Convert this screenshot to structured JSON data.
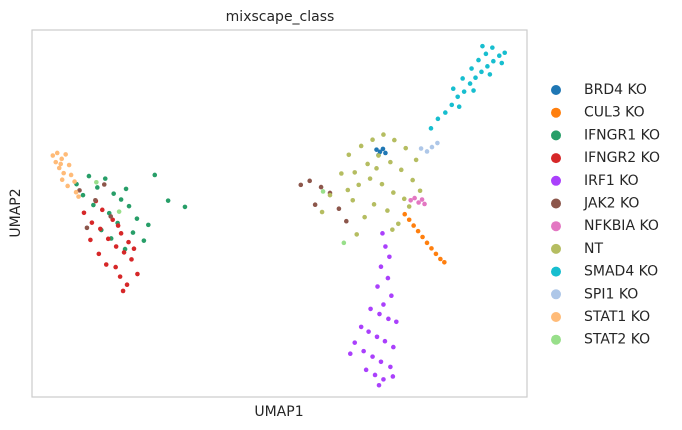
{
  "chart_data": {
    "type": "scatter",
    "title": "mixscape_class",
    "x_label": "UMAP1",
    "y_label": "UMAP2",
    "xlim": [
      0,
      100
    ],
    "ylim": [
      0,
      100
    ],
    "grid": false,
    "legend": "outside-right",
    "series": [
      {
        "name": "BRD4 KO",
        "color": "#1f77b4",
        "x": [
          69.6,
          70.3,
          70.9,
          70.0,
          71.4
        ],
        "y": [
          67.4,
          66.8,
          67.6,
          65.9,
          66.5
        ]
      },
      {
        "name": "CUL3 KO",
        "color": "#ff7f0e",
        "x": [
          75.3,
          76.2,
          77.1,
          78.0,
          78.9,
          79.8,
          80.7,
          81.6,
          82.5,
          83.3
        ],
        "y": [
          49.8,
          48.3,
          46.7,
          45.2,
          43.6,
          42.0,
          40.5,
          39.0,
          37.6,
          36.7
        ]
      },
      {
        "name": "IFNGR1 KO",
        "color": "#279e68",
        "x": [
          9.0,
          11.5,
          13.2,
          14.8,
          16.5,
          18.0,
          19.6,
          21.2,
          12.4,
          15.6,
          17.3,
          20.4,
          22.6,
          10.3,
          14.0,
          18.8,
          23.5,
          24.8,
          27.5,
          30.9,
          16.0,
          19.0
        ],
        "y": [
          58.0,
          60.2,
          57.1,
          59.5,
          55.4,
          53.8,
          52.0,
          48.6,
          52.3,
          50.1,
          47.4,
          44.8,
          42.6,
          55.0,
          45.5,
          40.3,
          46.9,
          60.5,
          53.5,
          51.8,
          43.2,
          56.7
        ]
      },
      {
        "name": "IFNGR2 KO",
        "color": "#d62728",
        "x": [
          10.5,
          12.1,
          13.8,
          15.4,
          17.0,
          18.6,
          20.1,
          14.2,
          16.3,
          18.0,
          19.5,
          16.9,
          17.8,
          19.2,
          11.8,
          13.5,
          15.0,
          21.3,
          12.9,
          18.4,
          20.6,
          17.4
        ],
        "y": [
          50.2,
          47.5,
          45.8,
          43.1,
          41.0,
          39.4,
          37.5,
          51.0,
          48.3,
          44.6,
          42.2,
          35.4,
          32.8,
          30.6,
          42.8,
          39.0,
          36.1,
          33.5,
          53.4,
          28.9,
          40.4,
          46.7
        ]
      },
      {
        "name": "IRF1 KO",
        "color": "#aa40fc",
        "x": [
          70.8,
          71.4,
          72.2,
          70.5,
          71.9,
          69.8,
          72.6,
          71.0,
          68.4,
          70.2,
          72.0,
          73.6,
          66.5,
          68.0,
          69.7,
          71.3,
          73.0,
          65.2,
          67.0,
          68.8,
          70.5,
          72.4,
          67.5,
          69.3,
          71.0,
          70.1,
          72.9,
          64.3
        ],
        "y": [
          44.6,
          41.0,
          38.2,
          35.5,
          32.4,
          30.1,
          27.6,
          25.2,
          24.0,
          22.6,
          21.3,
          20.5,
          19.1,
          17.8,
          16.4,
          15.2,
          13.6,
          14.8,
          12.5,
          11.0,
          9.6,
          8.2,
          7.4,
          6.0,
          4.8,
          3.2,
          5.6,
          11.8
        ]
      },
      {
        "name": "JAK2 KO",
        "color": "#8c564b",
        "x": [
          9.6,
          12.8,
          15.9,
          11.1,
          14.6,
          54.3,
          56.1,
          58.4,
          60.2,
          62.0,
          63.5,
          57.2
        ],
        "y": [
          56.3,
          53.6,
          49.2,
          46.1,
          57.9,
          57.8,
          58.9,
          57.2,
          55.6,
          51.3,
          47.9,
          52.4
        ]
      },
      {
        "name": "NFKBIA KO",
        "color": "#e377c2",
        "x": [
          76.5,
          77.3,
          78.1,
          78.8,
          79.3
        ],
        "y": [
          53.6,
          54.2,
          53.0,
          53.8,
          52.6
        ]
      },
      {
        "name": "NT",
        "color": "#b5bd61",
        "x": [
          64.0,
          66.5,
          68.8,
          71.0,
          73.2,
          75.5,
          77.6,
          65.2,
          67.8,
          70.0,
          72.4,
          74.6,
          76.9,
          63.8,
          66.0,
          68.3,
          70.7,
          73.0,
          75.2,
          69.1,
          71.8,
          67.2,
          74.0,
          62.5,
          78.4,
          60.2,
          58.6,
          65.6,
          72.8,
          69.6,
          76.2,
          64.8
        ],
        "y": [
          66.0,
          68.4,
          70.1,
          71.5,
          70.0,
          67.8,
          64.6,
          61.2,
          63.5,
          65.8,
          64.0,
          61.9,
          59.1,
          56.4,
          57.8,
          59.5,
          58.0,
          55.7,
          54.0,
          52.5,
          50.8,
          49.0,
          47.2,
          60.9,
          56.2,
          55.0,
          50.4,
          44.3,
          45.6,
          62.3,
          51.9,
          53.6
        ]
      },
      {
        "name": "SMAD4 KO",
        "color": "#17becf",
        "x": [
          80.6,
          82.0,
          83.5,
          84.8,
          86.0,
          87.3,
          88.5,
          89.6,
          90.8,
          92.0,
          93.2,
          94.4,
          95.5,
          87.0,
          88.8,
          90.2,
          91.7,
          93.0,
          86.3,
          89.2,
          92.5,
          94.9,
          85.1,
          91.0
        ],
        "y": [
          73.2,
          75.8,
          77.5,
          79.6,
          81.8,
          83.2,
          85.4,
          87.0,
          88.6,
          90.1,
          91.5,
          93.0,
          93.8,
          86.8,
          89.5,
          91.8,
          93.5,
          95.2,
          79.1,
          83.5,
          87.9,
          91.0,
          84.0,
          95.6
        ]
      },
      {
        "name": "SPI1 KO",
        "color": "#aec7e8",
        "x": [
          79.8,
          80.8,
          81.9,
          78.6
        ],
        "y": [
          66.9,
          68.1,
          69.2,
          67.7
        ]
      },
      {
        "name": "STAT1 KO",
        "color": "#ffbb78",
        "x": [
          4.2,
          5.1,
          6.0,
          6.8,
          7.5,
          5.5,
          6.4,
          7.9,
          8.6,
          4.8,
          6.1,
          7.2,
          8.9,
          9.4,
          5.8
        ],
        "y": [
          65.8,
          66.5,
          64.9,
          66.1,
          63.2,
          62.4,
          61.0,
          60.5,
          58.7,
          64.0,
          59.2,
          57.5,
          55.8,
          54.6,
          63.5
        ]
      },
      {
        "name": "STAT2 KO",
        "color": "#98df8a",
        "x": [
          13.0,
          17.6,
          58.8,
          63.0
        ],
        "y": [
          58.5,
          50.5,
          56.0,
          42.0
        ]
      }
    ]
  }
}
